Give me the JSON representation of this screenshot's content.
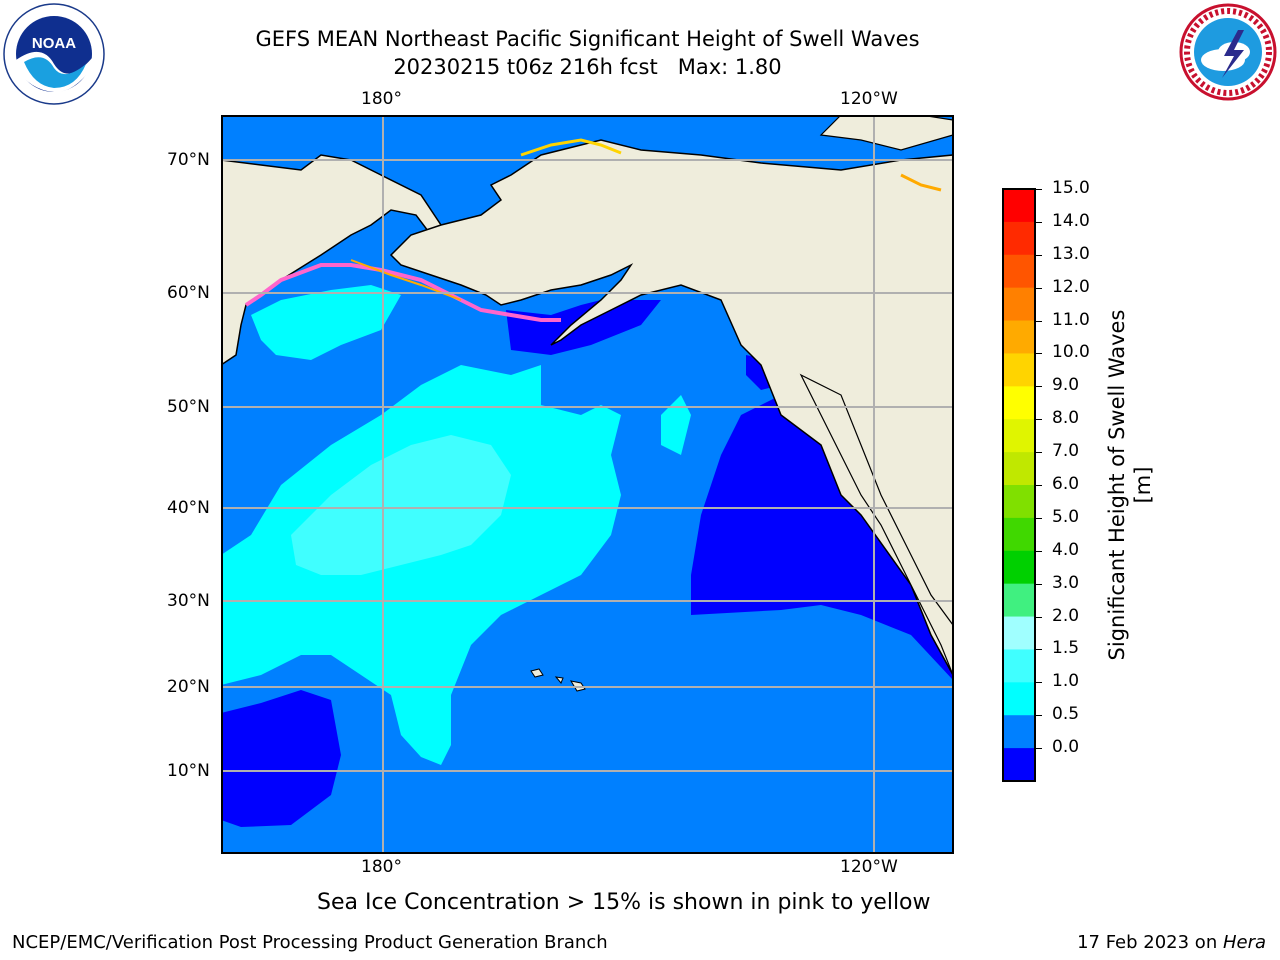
{
  "title": {
    "line1": "GEFS MEAN Northeast Pacific Significant Height of Swell Waves",
    "line2": "20230215 t06z 216h fcst   Max: 1.80"
  },
  "logos": {
    "left": {
      "icon": "noaa-logo-icon",
      "text": "NOAA"
    },
    "right": {
      "icon": "nws-logo-icon"
    }
  },
  "map": {
    "lon_ticks_top": [
      "180°",
      "120°W"
    ],
    "lon_ticks_bottom": [
      "180°",
      "120°W"
    ],
    "lat_ticks": [
      "70°N",
      "60°N",
      "50°N",
      "40°N",
      "30°N",
      "20°N",
      "10°N"
    ],
    "colors": {
      "land": "#efeddc",
      "ice_free_white": "#ffffff",
      "grid": "#b0b0b0"
    }
  },
  "colorbar": {
    "title": "Significant Height of Swell Waves [m]",
    "labels": [
      "15.0",
      "14.0",
      "13.0",
      "12.0",
      "11.0",
      "10.0",
      "9.0",
      "8.0",
      "7.0",
      "6.0",
      "5.0",
      "4.0",
      "3.0",
      "2.0",
      "1.5",
      "1.0",
      "0.5",
      "0.0"
    ],
    "colors_top_to_bottom": [
      "#ff0000",
      "#ff2a00",
      "#ff5500",
      "#ff8000",
      "#ffaa00",
      "#ffd400",
      "#ffff00",
      "#e0f500",
      "#c0e800",
      "#80e000",
      "#40d800",
      "#00d000",
      "#40f080",
      "#a0ffff",
      "#40ffff",
      "#00ffff",
      "#0080ff",
      "#0000ff"
    ]
  },
  "caption": "Sea Ice Concentration > 15% is shown in pink to yellow",
  "footer": {
    "left": "NCEP/EMC/Verification Post Processing Product Generation Branch",
    "right_prefix": "17 Feb 2023 on ",
    "right_host": "Hera"
  }
}
